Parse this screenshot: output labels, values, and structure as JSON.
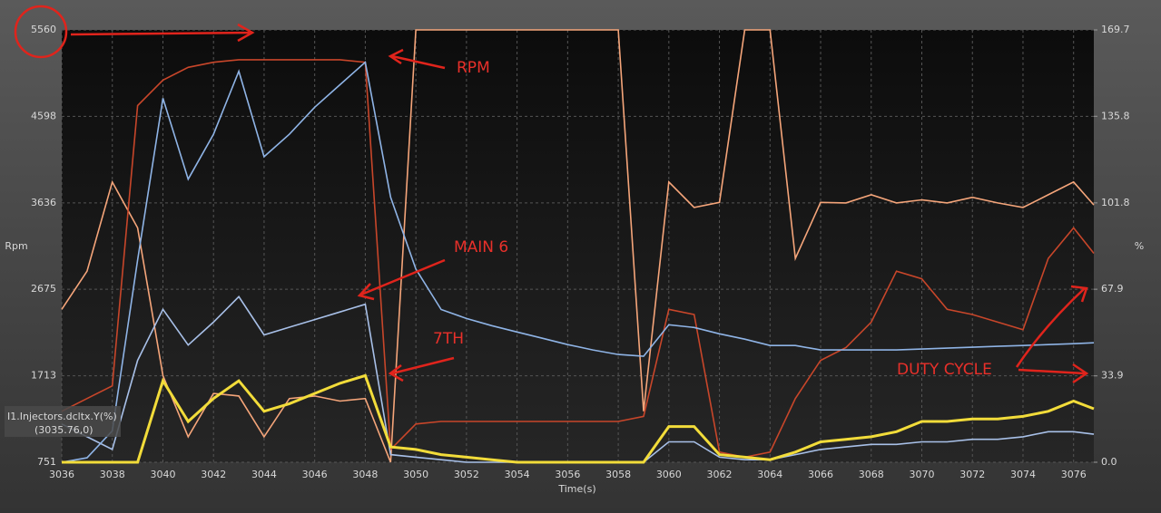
{
  "chart_data": {
    "type": "line",
    "y_label": "Rpm",
    "y2_label": "%",
    "x_label": "Time(s)",
    "xlim": [
      3036,
      3076.8
    ],
    "xticks": [
      3036,
      3038,
      3040,
      3042,
      3044,
      3046,
      3048,
      3050,
      3052,
      3054,
      3056,
      3058,
      3060,
      3062,
      3064,
      3066,
      3068,
      3070,
      3072,
      3074,
      3076
    ],
    "ylim": [
      751,
      5560
    ],
    "yticks": [
      751,
      1713,
      2675,
      3636,
      4598,
      5560
    ],
    "y2lim": [
      0,
      169.7
    ],
    "y2ticks": [
      {
        "value": 0,
        "label": "0.0"
      },
      33.9,
      67.9,
      101.8,
      135.8,
      169.7
    ],
    "grid": true,
    "x": [
      3036,
      3037,
      3038,
      3039,
      3040,
      3041,
      3042,
      3043,
      3044,
      3045,
      3046,
      3047,
      3048,
      3049,
      3050,
      3051,
      3052,
      3053,
      3054,
      3055,
      3056,
      3057,
      3058,
      3059,
      3060,
      3061,
      3062,
      3063,
      3064,
      3065,
      3066,
      3067,
      3068,
      3069,
      3070,
      3071,
      3072,
      3073,
      3074,
      3075,
      3076,
      3076.8
    ],
    "series": [
      {
        "color": "#f5a57a",
        "axis": "y2",
        "values": [
          60,
          75,
          110,
          92,
          34,
          10,
          27,
          26,
          10,
          25,
          26,
          24,
          25,
          0,
          169.7,
          169.7,
          169.7,
          169.7,
          169.7,
          169.7,
          169.7,
          169.7,
          169.7,
          20,
          110,
          100,
          102,
          169.7,
          169.7,
          80,
          102,
          101.8,
          105,
          101.8,
          103,
          101.8,
          104,
          101.8,
          100,
          105,
          110,
          101
        ]
      },
      {
        "color": "#c8462a",
        "axis": "y2",
        "values": [
          20,
          25,
          30,
          140,
          150,
          155,
          157,
          158,
          158,
          158,
          158,
          158,
          157,
          5,
          15,
          16,
          16,
          16,
          16,
          16,
          16,
          16,
          16,
          18,
          60,
          58,
          4,
          2,
          4,
          25,
          40,
          45,
          55,
          75,
          72,
          60,
          58,
          55,
          52,
          80,
          92,
          82
        ]
      },
      {
        "color": "#a8c0e8",
        "axis": "y2",
        "values": [
          15,
          10,
          5,
          40,
          60,
          46,
          55,
          65,
          50,
          53,
          56,
          59,
          62,
          3,
          2,
          1,
          0,
          0,
          0,
          0,
          0,
          0,
          0,
          0,
          8,
          8,
          2,
          1,
          1,
          3,
          5,
          6,
          7,
          7,
          8,
          8,
          9,
          9,
          10,
          12,
          12,
          11
        ]
      },
      {
        "color": "#8fb4e6",
        "values": [
          751,
          800,
          1100,
          3000,
          4800,
          3900,
          4400,
          5100,
          4150,
          4400,
          4700,
          4950,
          5200,
          3700,
          2900,
          2450,
          2350,
          2270,
          2200,
          2130,
          2060,
          2000,
          1950,
          1930,
          2280,
          2250,
          2180,
          2120,
          2050,
          2050,
          2000,
          2000,
          2000,
          2000,
          2010,
          2020,
          2030,
          2040,
          2050,
          2060,
          2070,
          2080
        ]
      },
      {
        "color": "#f2dc3a",
        "axis": "y2",
        "values": [
          0,
          0,
          0,
          0,
          32,
          16,
          25,
          32,
          20,
          23,
          27,
          31,
          34,
          6,
          5,
          3,
          2,
          1,
          0,
          0,
          0,
          0,
          0,
          0,
          14,
          14,
          3,
          2,
          1,
          4,
          8,
          9,
          10,
          12,
          16,
          16,
          17,
          17,
          18,
          20,
          24,
          21
        ]
      }
    ],
    "annotations": [
      "RPM",
      "MAIN 6",
      "7TH",
      "DUTY CYCLE"
    ],
    "cursor_label": "I1.Injectors.dcltx.Y(%)",
    "cursor_value": "(3035.76,0)"
  }
}
